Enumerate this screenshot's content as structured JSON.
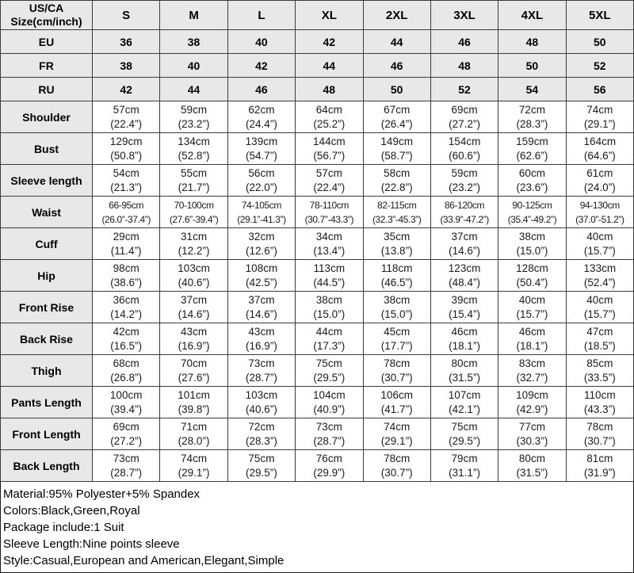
{
  "table": {
    "header": {
      "label_line1": "US/CA",
      "label_line2": "Size(cm/inch)",
      "sizes": [
        "S",
        "M",
        "L",
        "XL",
        "2XL",
        "3XL",
        "4XL",
        "5XL"
      ]
    },
    "size_rows": [
      {
        "label": "EU",
        "values": [
          "36",
          "38",
          "40",
          "42",
          "44",
          "46",
          "48",
          "50"
        ]
      },
      {
        "label": "FR",
        "values": [
          "38",
          "40",
          "42",
          "44",
          "46",
          "48",
          "50",
          "52"
        ]
      },
      {
        "label": "RU",
        "values": [
          "42",
          "44",
          "46",
          "48",
          "50",
          "52",
          "54",
          "56"
        ]
      }
    ],
    "measurement_rows": [
      {
        "label": "Shoulder",
        "cm": [
          "57cm",
          "59cm",
          "62cm",
          "64cm",
          "67cm",
          "69cm",
          "72cm",
          "74cm"
        ],
        "inch": [
          "(22.4”)",
          "(23.2”)",
          "(24.4”)",
          "(25.2”)",
          "(26.4”)",
          "(27.2”)",
          "(28.3”)",
          "(29.1”)"
        ]
      },
      {
        "label": "Bust",
        "cm": [
          "129cm",
          "134cm",
          "139cm",
          "144cm",
          "149cm",
          "154cm",
          "159cm",
          "164cm"
        ],
        "inch": [
          "(50.8”)",
          "(52.8”)",
          "(54.7”)",
          "(56.7”)",
          "(58.7”)",
          "(60.6”)",
          "(62.6”)",
          "(64.6”)"
        ]
      },
      {
        "label": "Sleeve length",
        "cm": [
          "54cm",
          "55cm",
          "56cm",
          "57cm",
          "58cm",
          "59cm",
          "60cm",
          "61cm"
        ],
        "inch": [
          "(21.3”)",
          "(21.7”)",
          "(22.0”)",
          "(22.4”)",
          "(22.8”)",
          "(23.2”)",
          "(23.6”)",
          "(24.0”)"
        ]
      },
      {
        "label": "Waist",
        "cm": [
          "66-95cm",
          "70-100cm",
          "74-105cm",
          "78-110cm",
          "82-115cm",
          "86-120cm",
          "90-125cm",
          "94-130cm"
        ],
        "inch": [
          "(26.0”-37.4”)",
          "(27.6”-39.4”)",
          "(29.1”-41.3”)",
          "(30.7”-43.3”)",
          "(32.3”-45.3”)",
          "(33.9”-47.2”)",
          "(35.4”-49.2”)",
          "(37.0”-51.2”)"
        ]
      },
      {
        "label": "Cuff",
        "cm": [
          "29cm",
          "31cm",
          "32cm",
          "34cm",
          "35cm",
          "37cm",
          "38cm",
          "40cm"
        ],
        "inch": [
          "(11.4”)",
          "(12.2”)",
          "(12.6”)",
          "(13.4”)",
          "(13.8”)",
          "(14.6”)",
          "(15.0”)",
          "(15.7”)"
        ]
      },
      {
        "label": "Hip",
        "cm": [
          "98cm",
          "103cm",
          "108cm",
          "113cm",
          "118cm",
          "123cm",
          "128cm",
          "133cm"
        ],
        "inch": [
          "(38.6”)",
          "(40.6”)",
          "(42.5”)",
          "(44.5”)",
          "(46.5”)",
          "(48.4”)",
          "(50.4”)",
          "(52.4”)"
        ]
      },
      {
        "label": "Front Rise",
        "cm": [
          "36cm",
          "37cm",
          "37cm",
          "38cm",
          "38cm",
          "39cm",
          "40cm",
          "40cm"
        ],
        "inch": [
          "(14.2”)",
          "(14.6”)",
          "(14.6”)",
          "(15.0”)",
          "(15.0”)",
          "(15.4”)",
          "(15.7”)",
          "(15.7”)"
        ]
      },
      {
        "label": "Back Rise",
        "cm": [
          "42cm",
          "43cm",
          "43cm",
          "44cm",
          "45cm",
          "46cm",
          "46cm",
          "47cm"
        ],
        "inch": [
          "(16.5”)",
          "(16.9”)",
          "(16.9”)",
          "(17.3”)",
          "(17.7”)",
          "(18.1”)",
          "(18.1”)",
          "(18.5”)"
        ]
      },
      {
        "label": "Thigh",
        "cm": [
          "68cm",
          "70cm",
          "73cm",
          "75cm",
          "78cm",
          "80cm",
          "83cm",
          "85cm"
        ],
        "inch": [
          "(26.8”)",
          "(27.6”)",
          "(28.7”)",
          "(29.5”)",
          "(30.7”)",
          "(31.5”)",
          "(32.7”)",
          "(33.5”)"
        ]
      },
      {
        "label": "Pants Length",
        "cm": [
          "100cm",
          "101cm",
          "103cm",
          "104cm",
          "106cm",
          "107cm",
          "109cm",
          "110cm"
        ],
        "inch": [
          "(39.4”)",
          "(39.8”)",
          "(40.6”)",
          "(40.9”)",
          "(41.7”)",
          "(42.1”)",
          "(42.9”)",
          "(43.3”)"
        ]
      },
      {
        "label": "Front Length",
        "cm": [
          "69cm",
          "71cm",
          "72cm",
          "73cm",
          "74cm",
          "75cm",
          "77cm",
          "78cm"
        ],
        "inch": [
          "(27.2”)",
          "(28.0”)",
          "(28.3”)",
          "(28.7”)",
          "(29.1”)",
          "(29.5”)",
          "(30.3”)",
          "(30.7”)"
        ]
      },
      {
        "label": "Back Length",
        "cm": [
          "73cm",
          "74cm",
          "75cm",
          "76cm",
          "78cm",
          "79cm",
          "80cm",
          "81cm"
        ],
        "inch": [
          "(28.7”)",
          "(29.1”)",
          "(29.5”)",
          "(29.9”)",
          "(30.7”)",
          "(31.1”)",
          "(31.5”)",
          "(31.9”)"
        ]
      }
    ]
  },
  "footer": {
    "lines": [
      "Material:95% Polyester+5% Spandex",
      "Colors:Black,Green,Royal",
      "Package include:1 Suit",
      "Sleeve Length:Nine points sleeve",
      "Style:Casual,European and American,Elegant,Simple"
    ]
  },
  "colors": {
    "header_bg": "#e8e8e8",
    "cell_bg": "#ffffff",
    "border": "#3c3c3c",
    "text": "#000000"
  }
}
